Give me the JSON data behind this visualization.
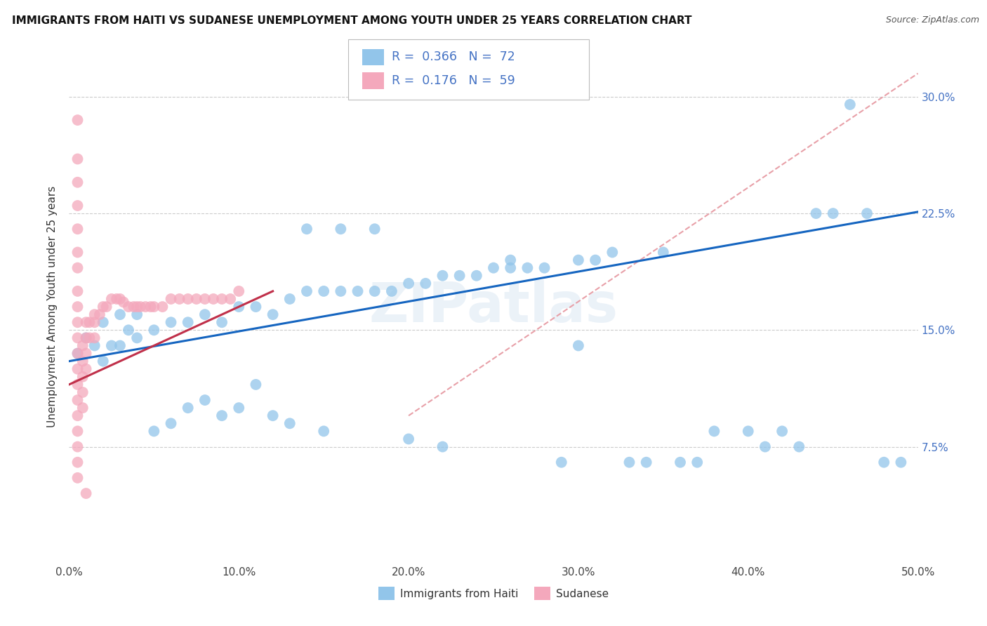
{
  "title": "IMMIGRANTS FROM HAITI VS SUDANESE UNEMPLOYMENT AMONG YOUTH UNDER 25 YEARS CORRELATION CHART",
  "source": "Source: ZipAtlas.com",
  "ylabel": "Unemployment Among Youth under 25 years",
  "xlim": [
    0.0,
    0.5
  ],
  "ylim": [
    0.0,
    0.33
  ],
  "xticks": [
    0.0,
    0.1,
    0.2,
    0.3,
    0.4,
    0.5
  ],
  "xtick_labels": [
    "0.0%",
    "10.0%",
    "20.0%",
    "30.0%",
    "40.0%",
    "50.0%"
  ],
  "yticks": [
    0.075,
    0.15,
    0.225,
    0.3
  ],
  "ytick_labels": [
    "7.5%",
    "15.0%",
    "22.5%",
    "30.0%"
  ],
  "legend_blue_r": "0.366",
  "legend_blue_n": "72",
  "legend_pink_r": "0.176",
  "legend_pink_n": "59",
  "legend_label_blue": "Immigrants from Haiti",
  "legend_label_pink": "Sudanese",
  "blue_color": "#92C5EA",
  "pink_color": "#F4A8BC",
  "blue_line_color": "#1565C0",
  "pink_line_color": "#C0304A",
  "dash_color": "#E8A0A8",
  "watermark": "ZIPatlas",
  "blue_scatter_x": [
    0.005,
    0.01,
    0.015,
    0.02,
    0.02,
    0.025,
    0.03,
    0.03,
    0.035,
    0.04,
    0.04,
    0.05,
    0.05,
    0.06,
    0.06,
    0.07,
    0.07,
    0.08,
    0.08,
    0.09,
    0.09,
    0.1,
    0.1,
    0.11,
    0.11,
    0.12,
    0.12,
    0.13,
    0.13,
    0.14,
    0.15,
    0.15,
    0.16,
    0.17,
    0.18,
    0.19,
    0.2,
    0.2,
    0.21,
    0.22,
    0.22,
    0.23,
    0.24,
    0.25,
    0.26,
    0.27,
    0.28,
    0.29,
    0.3,
    0.3,
    0.31,
    0.32,
    0.33,
    0.34,
    0.35,
    0.36,
    0.37,
    0.38,
    0.4,
    0.41,
    0.42,
    0.43,
    0.44,
    0.45,
    0.46,
    0.47,
    0.48,
    0.49,
    0.14,
    0.16,
    0.18,
    0.26
  ],
  "blue_scatter_y": [
    0.135,
    0.145,
    0.14,
    0.155,
    0.13,
    0.14,
    0.14,
    0.16,
    0.15,
    0.145,
    0.16,
    0.15,
    0.085,
    0.155,
    0.09,
    0.155,
    0.1,
    0.16,
    0.105,
    0.155,
    0.095,
    0.165,
    0.1,
    0.165,
    0.115,
    0.16,
    0.095,
    0.17,
    0.09,
    0.175,
    0.175,
    0.085,
    0.175,
    0.175,
    0.175,
    0.175,
    0.18,
    0.08,
    0.18,
    0.185,
    0.075,
    0.185,
    0.185,
    0.19,
    0.19,
    0.19,
    0.19,
    0.065,
    0.195,
    0.14,
    0.195,
    0.2,
    0.065,
    0.065,
    0.2,
    0.065,
    0.065,
    0.085,
    0.085,
    0.075,
    0.085,
    0.075,
    0.225,
    0.225,
    0.295,
    0.225,
    0.065,
    0.065,
    0.215,
    0.215,
    0.215,
    0.195
  ],
  "pink_scatter_x": [
    0.005,
    0.005,
    0.005,
    0.005,
    0.005,
    0.005,
    0.005,
    0.005,
    0.005,
    0.005,
    0.005,
    0.005,
    0.005,
    0.005,
    0.005,
    0.005,
    0.005,
    0.005,
    0.005,
    0.005,
    0.008,
    0.008,
    0.008,
    0.008,
    0.008,
    0.01,
    0.01,
    0.01,
    0.01,
    0.01,
    0.012,
    0.012,
    0.015,
    0.015,
    0.015,
    0.018,
    0.02,
    0.022,
    0.025,
    0.028,
    0.03,
    0.032,
    0.035,
    0.038,
    0.04,
    0.042,
    0.045,
    0.048,
    0.05,
    0.055,
    0.06,
    0.065,
    0.07,
    0.075,
    0.08,
    0.085,
    0.09,
    0.095,
    0.1
  ],
  "pink_scatter_y": [
    0.285,
    0.26,
    0.245,
    0.23,
    0.215,
    0.2,
    0.19,
    0.175,
    0.165,
    0.155,
    0.145,
    0.135,
    0.125,
    0.115,
    0.105,
    0.095,
    0.085,
    0.075,
    0.065,
    0.055,
    0.14,
    0.13,
    0.12,
    0.11,
    0.1,
    0.155,
    0.145,
    0.135,
    0.125,
    0.045,
    0.155,
    0.145,
    0.16,
    0.155,
    0.145,
    0.16,
    0.165,
    0.165,
    0.17,
    0.17,
    0.17,
    0.168,
    0.165,
    0.165,
    0.165,
    0.165,
    0.165,
    0.165,
    0.165,
    0.165,
    0.17,
    0.17,
    0.17,
    0.17,
    0.17,
    0.17,
    0.17,
    0.17,
    0.175
  ],
  "blue_line_x0": 0.0,
  "blue_line_y0": 0.13,
  "blue_line_x1": 0.5,
  "blue_line_y1": 0.226,
  "pink_line_x0": 0.0,
  "pink_line_y0": 0.115,
  "pink_line_x1": 0.12,
  "pink_line_y1": 0.175,
  "dash_line_x0": 0.2,
  "dash_line_y0": 0.095,
  "dash_line_x1": 0.5,
  "dash_line_y1": 0.315
}
